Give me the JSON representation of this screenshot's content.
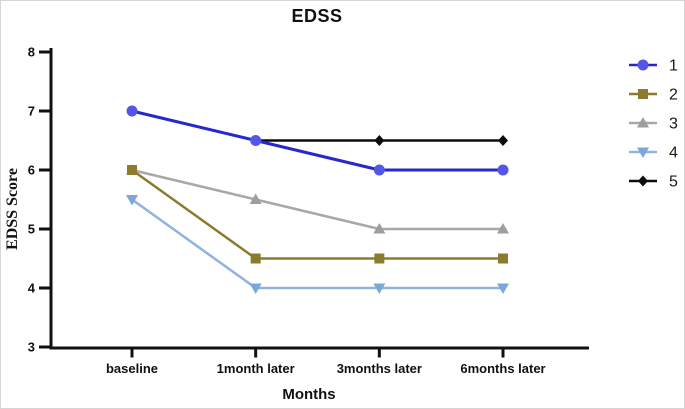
{
  "figure_title": "EDSS",
  "chart_data": {
    "type": "line",
    "title": "EDSS",
    "xlabel": "Months",
    "ylabel": "EDSS Score",
    "categories": [
      "baseline",
      "1month later",
      "3months later",
      "6months later"
    ],
    "ylim": [
      3,
      8
    ],
    "yticks": [
      8,
      7,
      6,
      5,
      4,
      3
    ],
    "grid": false,
    "legend_position": "right",
    "axis_color": "#111111",
    "series": [
      {
        "name": "1",
        "marker": "circle",
        "line_color": "#2727cf",
        "marker_color": "#5456e8",
        "values": [
          7,
          6.5,
          6,
          6
        ]
      },
      {
        "name": "2",
        "marker": "square",
        "line_color": "#8c7b2c",
        "marker_color": "#8c7b2c",
        "values": [
          6,
          4.5,
          4.5,
          4.5
        ]
      },
      {
        "name": "3",
        "marker": "triangle-up",
        "line_color": "#a8a8a8",
        "marker_color": "#9e9e9e",
        "values": [
          6,
          5.5,
          5,
          5
        ]
      },
      {
        "name": "4",
        "marker": "triangle-down",
        "line_color": "#8fb2df",
        "marker_color": "#7aa8da",
        "values": [
          5.5,
          4,
          4,
          4
        ]
      },
      {
        "name": "5",
        "marker": "diamond",
        "line_color": "#0d0d0d",
        "marker_color": "#0d0d0d",
        "values": [
          null,
          6.5,
          6.5,
          6.5
        ]
      }
    ]
  }
}
